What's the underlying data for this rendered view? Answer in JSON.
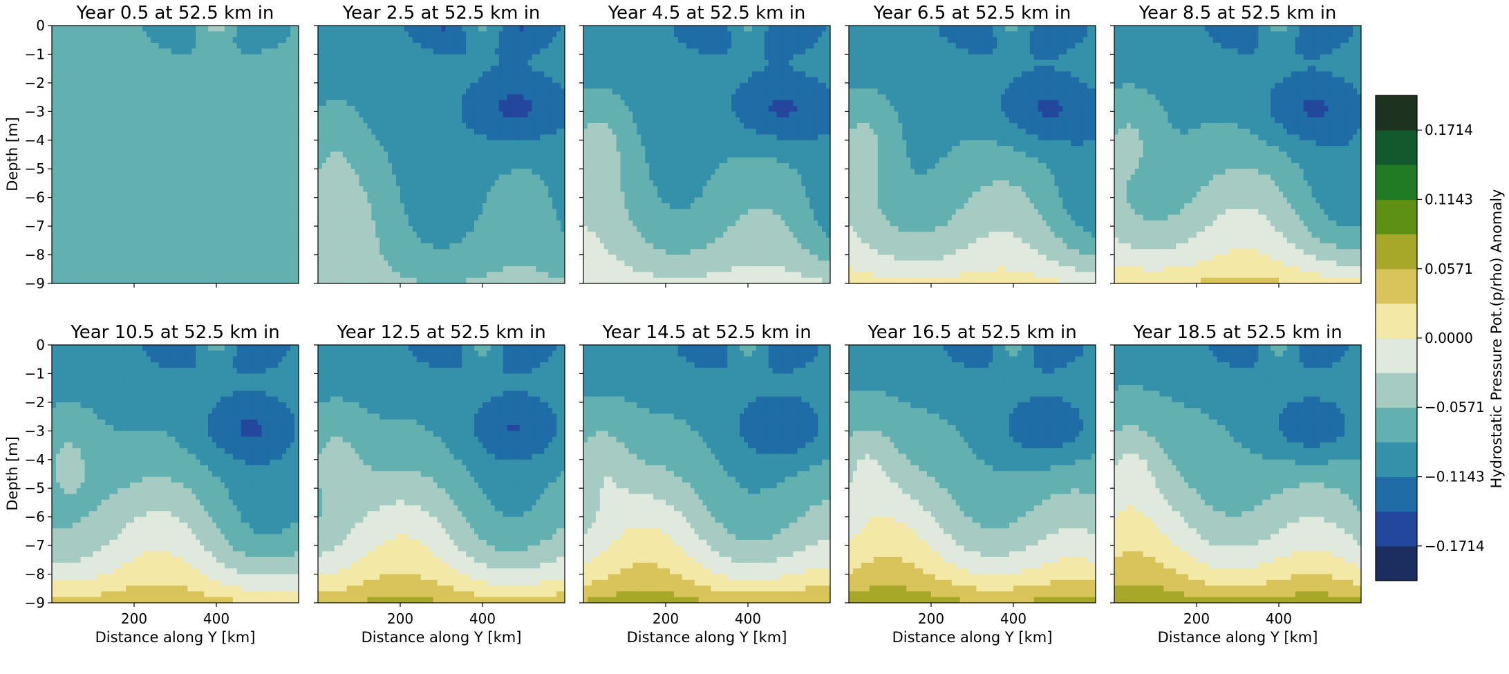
{
  "chart_data": {
    "type": "filled-contour",
    "panels": [
      {
        "title": "Year 0.5 at 52.5 km in"
      },
      {
        "title": "Year 2.5 at 52.5 km in"
      },
      {
        "title": "Year 4.5 at 52.5 km in"
      },
      {
        "title": "Year 6.5 at 52.5 km in"
      },
      {
        "title": "Year 8.5 at 52.5 km in"
      },
      {
        "title": "Year 10.5 at 52.5 km in"
      },
      {
        "title": "Year 12.5 at 52.5 km in"
      },
      {
        "title": "Year 14.5 at 52.5 km in"
      },
      {
        "title": "Year 16.5 at 52.5 km in"
      },
      {
        "title": "Year 18.5 at 52.5 km in"
      }
    ],
    "xlabel": "Distance along Y [km]",
    "ylabel": "Depth [m]",
    "xlim": [
      0,
      600
    ],
    "ylim": [
      -9,
      0
    ],
    "x_ticks": [
      200,
      400
    ],
    "y_ticks": [
      0,
      -1,
      -2,
      -3,
      -4,
      -5,
      -6,
      -7,
      -8,
      -9
    ],
    "y_tick_labels": [
      "0",
      "−1",
      "−2",
      "−3",
      "−4",
      "−5",
      "−6",
      "−7",
      "−8",
      "−9"
    ],
    "colorbar": {
      "label": "Hydrostatic Pressure Pot.(p/rho) Anomaly",
      "tick_values": [
        0.1714,
        0.1143,
        0.0571,
        0.0,
        -0.0571,
        -0.1143,
        -0.1714
      ],
      "tick_labels": [
        "0.1714",
        "0.1143",
        "0.0571",
        "0.0000",
        "−0.0571",
        "−0.1143",
        "−0.1714"
      ],
      "levels": [
        -0.2,
        -0.1714,
        -0.1429,
        -0.1143,
        -0.0857,
        -0.0571,
        -0.0286,
        0.0,
        0.0286,
        0.0571,
        0.0857,
        0.1143,
        0.1429,
        0.1714,
        0.2
      ],
      "colors": [
        "#1c2d5f",
        "#23479c",
        "#1f6ca6",
        "#3591aa",
        "#62b0b0",
        "#a6cbc2",
        "#e0e9dd",
        "#f4e8a7",
        "#d9c45b",
        "#a7a829",
        "#5e9016",
        "#217a24",
        "#125a2e",
        "#1d3320"
      ]
    },
    "shallow_maximum": {
      "center_y_km": 400,
      "center_depth_m": 0,
      "max_level": 0.0857
    }
  }
}
